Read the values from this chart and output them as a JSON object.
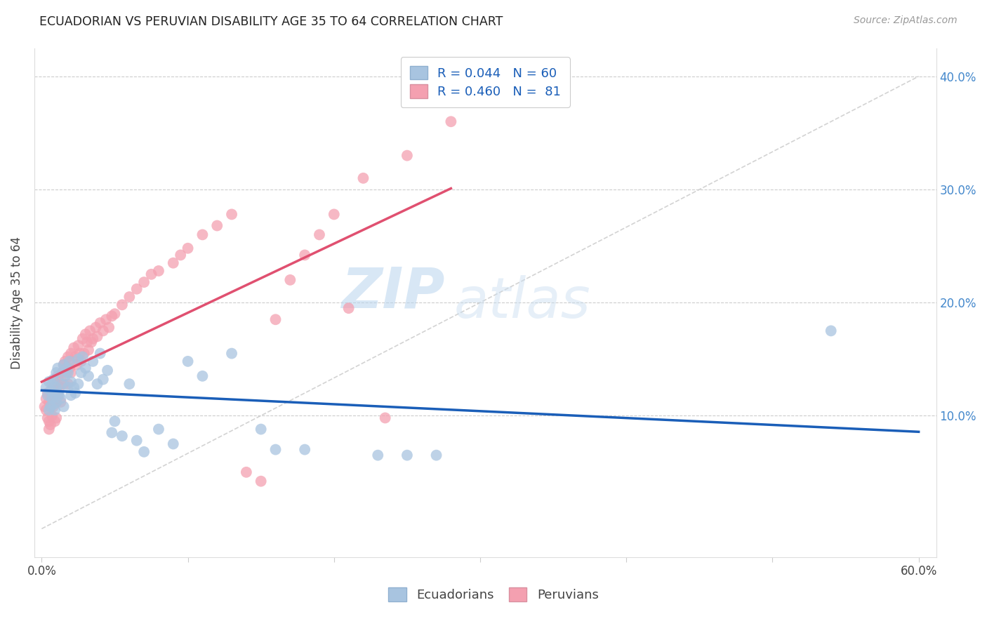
{
  "title": "ECUADORIAN VS PERUVIAN DISABILITY AGE 35 TO 64 CORRELATION CHART",
  "source": "Source: ZipAtlas.com",
  "ylabel": "Disability Age 35 to 64",
  "xmin": 0.0,
  "xmax": 0.6,
  "ymin": 0.0,
  "ymax": 0.42,
  "yticks": [
    0.1,
    0.2,
    0.3,
    0.4
  ],
  "ytick_labels": [
    "10.0%",
    "20.0%",
    "30.0%",
    "40.0%"
  ],
  "xtick_labels": [
    "0.0%",
    "60.0%"
  ],
  "ecuadorians_color": "#a8c4e0",
  "peruvians_color": "#f4a0b0",
  "ecuadorians_line_color": "#1a5eb8",
  "peruvians_line_color": "#e05070",
  "diagonal_line_color": "#c8c8c8",
  "R_ecu": 0.044,
  "N_ecu": 60,
  "R_per": 0.46,
  "N_per": 81,
  "legend_label_ecu": "Ecuadorians",
  "legend_label_per": "Peruvians",
  "watermark_zip": "ZIP",
  "watermark_atlas": "atlas",
  "ecu_x": [
    0.003,
    0.004,
    0.005,
    0.005,
    0.006,
    0.006,
    0.007,
    0.007,
    0.008,
    0.008,
    0.009,
    0.009,
    0.01,
    0.01,
    0.01,
    0.011,
    0.011,
    0.012,
    0.013,
    0.014,
    0.015,
    0.015,
    0.016,
    0.017,
    0.018,
    0.018,
    0.019,
    0.02,
    0.02,
    0.022,
    0.023,
    0.025,
    0.025,
    0.027,
    0.028,
    0.03,
    0.032,
    0.035,
    0.038,
    0.04,
    0.042,
    0.045,
    0.048,
    0.05,
    0.055,
    0.06,
    0.065,
    0.07,
    0.08,
    0.09,
    0.1,
    0.11,
    0.13,
    0.15,
    0.16,
    0.18,
    0.23,
    0.25,
    0.27,
    0.54
  ],
  "ecu_y": [
    0.125,
    0.118,
    0.13,
    0.105,
    0.122,
    0.108,
    0.128,
    0.115,
    0.132,
    0.11,
    0.119,
    0.105,
    0.138,
    0.125,
    0.112,
    0.142,
    0.12,
    0.118,
    0.115,
    0.128,
    0.145,
    0.108,
    0.135,
    0.142,
    0.138,
    0.125,
    0.148,
    0.118,
    0.13,
    0.125,
    0.12,
    0.15,
    0.128,
    0.138,
    0.152,
    0.142,
    0.135,
    0.148,
    0.128,
    0.155,
    0.132,
    0.14,
    0.085,
    0.095,
    0.082,
    0.128,
    0.078,
    0.068,
    0.088,
    0.075,
    0.148,
    0.135,
    0.155,
    0.088,
    0.07,
    0.07,
    0.065,
    0.065,
    0.065,
    0.175
  ],
  "per_x": [
    0.002,
    0.003,
    0.003,
    0.004,
    0.004,
    0.005,
    0.005,
    0.005,
    0.006,
    0.006,
    0.007,
    0.007,
    0.008,
    0.008,
    0.009,
    0.009,
    0.01,
    0.01,
    0.01,
    0.011,
    0.011,
    0.012,
    0.013,
    0.013,
    0.014,
    0.015,
    0.015,
    0.016,
    0.017,
    0.018,
    0.018,
    0.019,
    0.02,
    0.02,
    0.021,
    0.022,
    0.023,
    0.024,
    0.025,
    0.026,
    0.027,
    0.028,
    0.029,
    0.03,
    0.031,
    0.032,
    0.033,
    0.034,
    0.035,
    0.037,
    0.038,
    0.04,
    0.042,
    0.044,
    0.046,
    0.048,
    0.05,
    0.055,
    0.06,
    0.065,
    0.07,
    0.075,
    0.08,
    0.09,
    0.095,
    0.1,
    0.11,
    0.12,
    0.13,
    0.14,
    0.15,
    0.16,
    0.17,
    0.18,
    0.19,
    0.2,
    0.21,
    0.22,
    0.235,
    0.25,
    0.28
  ],
  "per_y": [
    0.108,
    0.115,
    0.105,
    0.12,
    0.098,
    0.112,
    0.095,
    0.088,
    0.108,
    0.092,
    0.118,
    0.1,
    0.125,
    0.108,
    0.115,
    0.095,
    0.128,
    0.112,
    0.098,
    0.135,
    0.118,
    0.125,
    0.132,
    0.112,
    0.138,
    0.145,
    0.128,
    0.148,
    0.138,
    0.152,
    0.128,
    0.142,
    0.155,
    0.138,
    0.148,
    0.16,
    0.152,
    0.145,
    0.162,
    0.155,
    0.148,
    0.168,
    0.155,
    0.172,
    0.165,
    0.158,
    0.175,
    0.165,
    0.168,
    0.178,
    0.17,
    0.182,
    0.175,
    0.185,
    0.178,
    0.188,
    0.19,
    0.198,
    0.205,
    0.212,
    0.218,
    0.225,
    0.228,
    0.235,
    0.242,
    0.248,
    0.26,
    0.268,
    0.278,
    0.05,
    0.042,
    0.185,
    0.22,
    0.242,
    0.26,
    0.278,
    0.195,
    0.31,
    0.098,
    0.33,
    0.36
  ]
}
